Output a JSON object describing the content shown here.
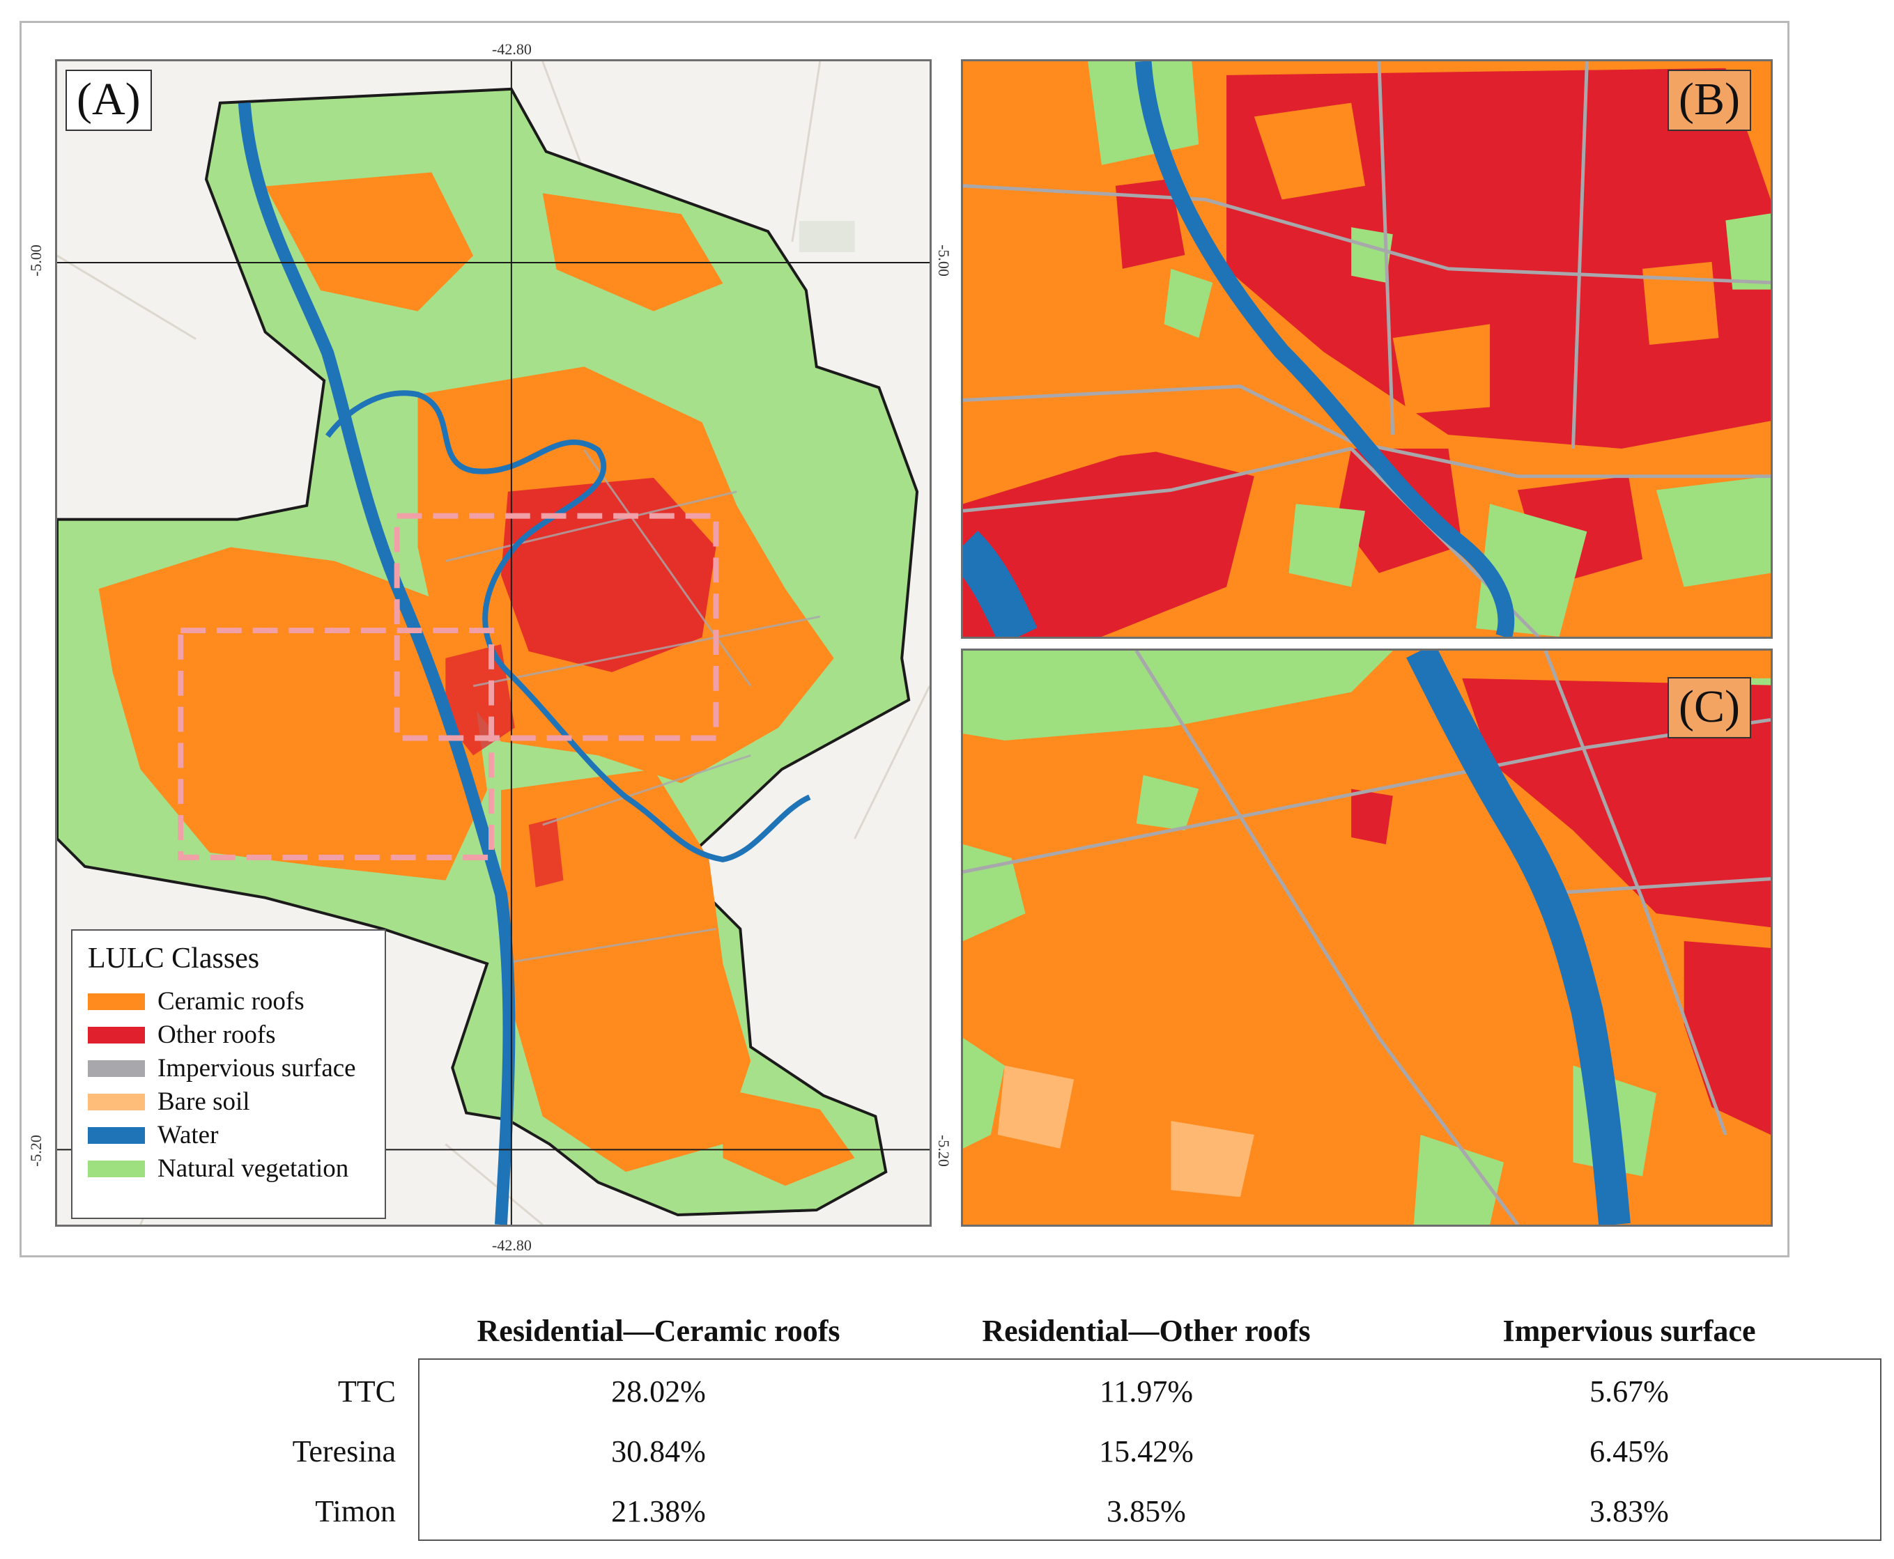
{
  "panels": {
    "a": {
      "label": "(A)"
    },
    "b": {
      "label": "(B)"
    },
    "c": {
      "label": "(C)"
    }
  },
  "coordinates": {
    "lon": "-42.80",
    "lat_top": "-5.00",
    "lat_bottom": "-5.20"
  },
  "legend": {
    "title": "LULC Classes",
    "items": [
      {
        "label": "Ceramic roofs",
        "color": "#ff8a1e"
      },
      {
        "label": "Other roofs",
        "color": "#e0202c"
      },
      {
        "label": "Impervious surface",
        "color": "#a8a8ac"
      },
      {
        "label": "Bare soil",
        "color": "#ffbd7a"
      },
      {
        "label": "Water",
        "color": "#1f74b8"
      },
      {
        "label": "Natural vegetation",
        "color": "#9ee080"
      }
    ]
  },
  "colors": {
    "ceramic": "#ff8a1e",
    "other": "#e0202c",
    "impervious": "#a8a8ac",
    "bare": "#ffbd7a",
    "water": "#1f74b8",
    "vegetation": "#9ee080",
    "inset_box": "#f2a0a8"
  },
  "table": {
    "headers": [
      "Residential—Ceramic roofs",
      "Residential—Other roofs",
      "Impervious surface"
    ],
    "rows": [
      {
        "label": "TTC",
        "values": [
          "28.02%",
          "11.97%",
          "5.67%"
        ]
      },
      {
        "label": "Teresina",
        "values": [
          "30.84%",
          "15.42%",
          "6.45%"
        ]
      },
      {
        "label": "Timon",
        "values": [
          "21.38%",
          "3.85%",
          "3.83%"
        ]
      }
    ]
  }
}
